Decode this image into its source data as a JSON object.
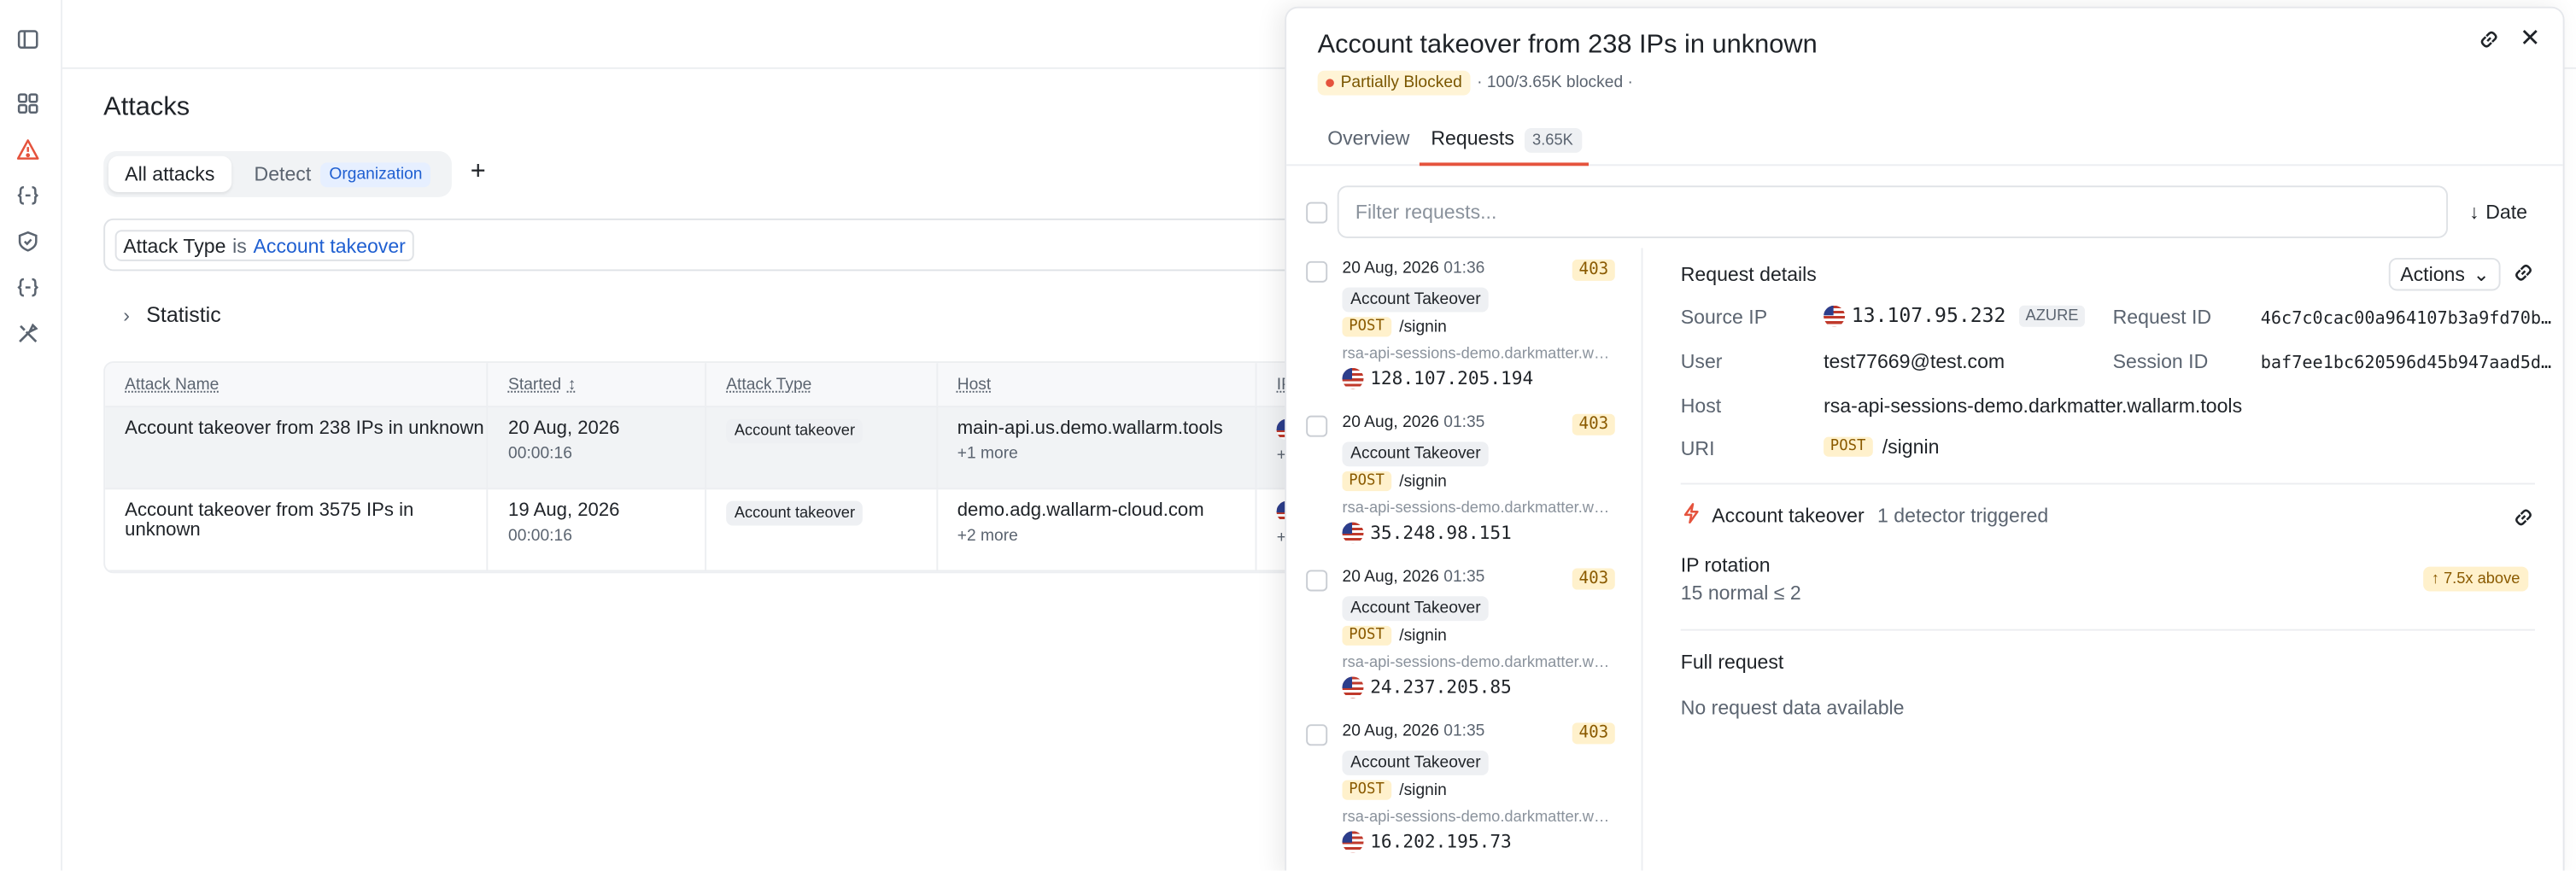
{
  "sidebar": {
    "icons": [
      "panel-toggle-icon",
      "dashboard-icon",
      "warning-icon",
      "api-icon",
      "shield-icon",
      "api-icon-2",
      "tools-icon"
    ]
  },
  "main": {
    "title": "Attacks",
    "tabs": [
      {
        "label": "All attacks",
        "active": true
      },
      {
        "label": "Detect",
        "badge": "Organization"
      }
    ],
    "add_tab": "+",
    "filter": {
      "field": "Attack Type",
      "op": "is",
      "value": "Account takeover"
    },
    "statistic_label": "Statistic",
    "table": {
      "columns": [
        "Attack Name",
        "Started",
        "Attack Type",
        "Host",
        "IP"
      ],
      "rows": [
        {
          "name": "Account takeover from 238 IPs in unknown",
          "date": "20 Aug, 2026",
          "time": "00:00:16",
          "type": "Account takeover",
          "host": "main-api.us.demo.wallarm.tools",
          "more": "+1 more",
          "ip_more": "+"
        },
        {
          "name": "Account takeover from 3575 IPs in unknown",
          "date": "19 Aug, 2026",
          "time": "00:00:16",
          "type": "Account takeover",
          "host": "demo.adg.wallarm-cloud.com",
          "more": "+2 more",
          "ip_more": "+"
        }
      ]
    }
  },
  "drawer": {
    "title": "Account takeover from 238 IPs in unknown",
    "status": "Partially Blocked",
    "blocked_text": "· 100/3.65K blocked ·",
    "tabs": {
      "overview": "Overview",
      "requests": "Requests",
      "requests_count": "3.65K"
    },
    "filter_placeholder": "Filter requests...",
    "sort_label": "Date",
    "requests": [
      {
        "date": "20 Aug, 2026",
        "time": "01:36",
        "code": "403",
        "type": "Account Takeover",
        "method": "POST",
        "path": "/signin",
        "host": "rsa-api-sessions-demo.darkmatter.wallarm.tools",
        "ip": "128.107.205.194"
      },
      {
        "date": "20 Aug, 2026",
        "time": "01:35",
        "code": "403",
        "type": "Account Takeover",
        "method": "POST",
        "path": "/signin",
        "host": "rsa-api-sessions-demo.darkmatter.wallarm.tools",
        "ip": "35.248.98.151"
      },
      {
        "date": "20 Aug, 2026",
        "time": "01:35",
        "code": "403",
        "type": "Account Takeover",
        "method": "POST",
        "path": "/signin",
        "host": "rsa-api-sessions-demo.darkmatter.wallarm.tools",
        "ip": "24.237.205.85"
      },
      {
        "date": "20 Aug, 2026",
        "time": "01:35",
        "code": "403",
        "type": "Account Takeover",
        "method": "POST",
        "path": "/signin",
        "host": "rsa-api-sessions-demo.darkmatter.wallarm.tools",
        "ip": "16.202.195.73"
      }
    ],
    "details": {
      "title": "Request details",
      "actions": "Actions",
      "source_ip_label": "Source IP",
      "source_ip": "13.107.95.232",
      "source_ip_tag": "AZURE",
      "request_id_label": "Request ID",
      "request_id": "46c7c0cac00a964107b3a9fd70b…",
      "user_label": "User",
      "user": "test77669@test.com",
      "session_id_label": "Session ID",
      "session_id": "baf7ee1bc620596d45b947aad5d…",
      "host_label": "Host",
      "host": "rsa-api-sessions-demo.darkmatter.wallarm.tools",
      "uri_label": "URI",
      "uri_method": "POST",
      "uri": "/signin",
      "detector_name": "Account takeover",
      "detector_count": "1 detector triggered",
      "ip_rotation_label": "IP rotation",
      "ip_rotation_value": "15 normal ≤ 2",
      "above_badge": "↑ 7.5x above",
      "full_request_label": "Full request",
      "no_data": "No request data available"
    }
  }
}
